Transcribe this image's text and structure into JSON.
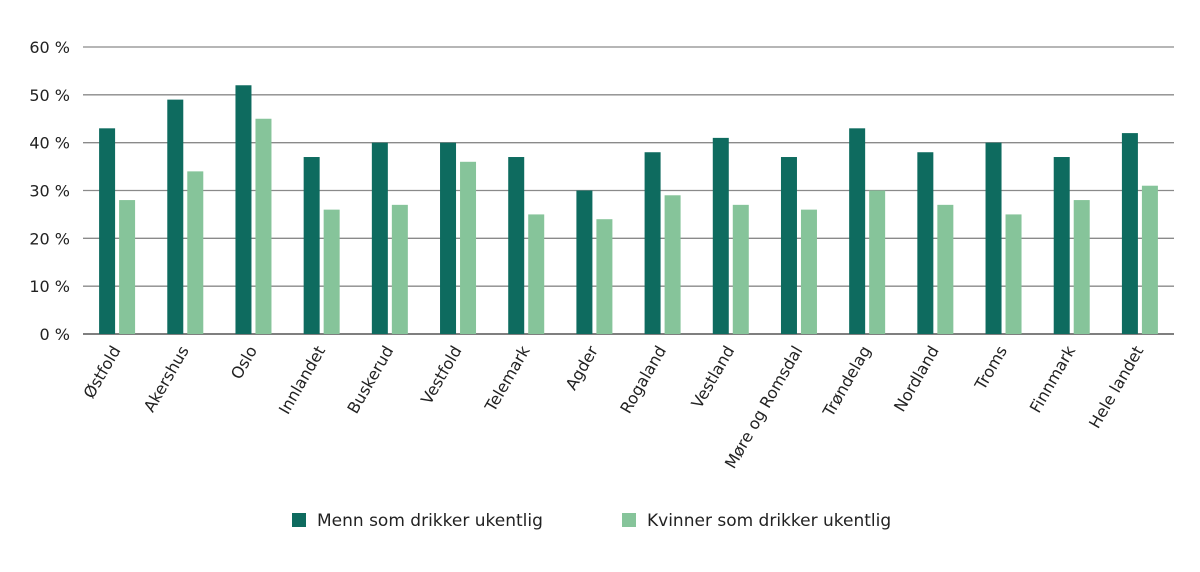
{
  "chart_data": {
    "type": "bar",
    "title": "",
    "xlabel": "",
    "ylabel": "",
    "ylim": [
      0,
      60
    ],
    "yticks": [
      "0 %",
      "10 %",
      "20 %",
      "30 %",
      "40 %",
      "50 %",
      "60 %"
    ],
    "grid": true,
    "legend_position": "bottom",
    "categories": [
      "Østfold",
      "Akershus",
      "Oslo",
      "Innlandet",
      "Buskerud",
      "Vestfold",
      "Telemark",
      "Agder",
      "Rogaland",
      "Vestland",
      "Møre og Romsdal",
      "Trøndelag",
      "Nordland",
      "Troms",
      "Finnmark",
      "Hele landet"
    ],
    "series": [
      {
        "name": "Menn som drikker ukentlig",
        "color": "#0e6b5f",
        "values": [
          43,
          49,
          52,
          37,
          40,
          40,
          37,
          30,
          38,
          41,
          37,
          43,
          38,
          40,
          37,
          42
        ]
      },
      {
        "name": "Kvinner som drikker ukentlig",
        "color": "#86c49a",
        "values": [
          28,
          34,
          45,
          26,
          27,
          36,
          25,
          24,
          29,
          27,
          26,
          30,
          27,
          25,
          28,
          31
        ]
      }
    ]
  }
}
